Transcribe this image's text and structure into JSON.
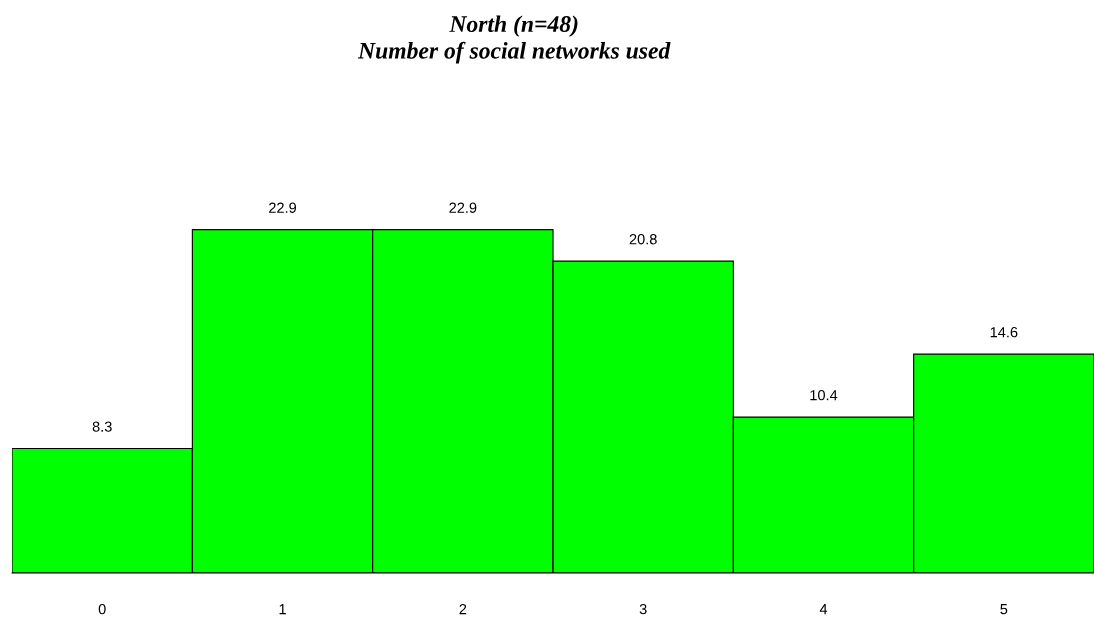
{
  "chart_data": {
    "type": "bar",
    "title": "North (n=48)\nNumber of social networks used",
    "categories": [
      "0",
      "1",
      "2",
      "3",
      "4",
      "5"
    ],
    "values": [
      8.3,
      22.9,
      22.9,
      20.8,
      10.4,
      14.6
    ],
    "color": "#00ff00",
    "data_labels": true,
    "grid": false,
    "legend": false
  }
}
